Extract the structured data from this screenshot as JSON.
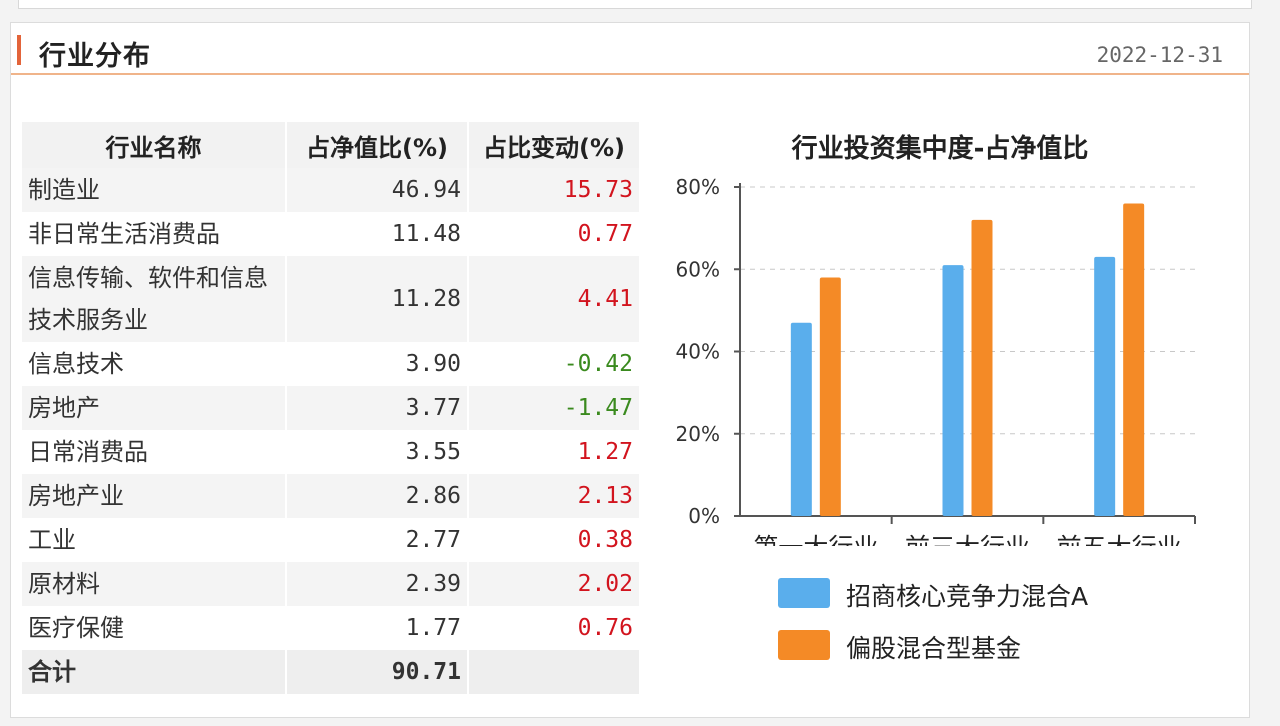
{
  "header": {
    "title": "行业分布",
    "date": "2022-12-31"
  },
  "table": {
    "columns": [
      "行业名称",
      "占净值比(%)",
      "占比变动(%)"
    ],
    "rows": [
      {
        "name": "制造业",
        "ratio": "46.94",
        "change": "15.73"
      },
      {
        "name": "非日常生活消费品",
        "ratio": "11.48",
        "change": "0.77"
      },
      {
        "name": "信息传输、软件和信息技术服务业",
        "ratio": "11.28",
        "change": "4.41"
      },
      {
        "name": "信息技术",
        "ratio": "3.90",
        "change": "-0.42"
      },
      {
        "name": "房地产",
        "ratio": "3.77",
        "change": "-1.47"
      },
      {
        "name": "日常消费品",
        "ratio": "3.55",
        "change": "1.27"
      },
      {
        "name": "房地产业",
        "ratio": "2.86",
        "change": "2.13"
      },
      {
        "name": "工业",
        "ratio": "2.77",
        "change": "0.38"
      },
      {
        "name": "原材料",
        "ratio": "2.39",
        "change": "2.02"
      },
      {
        "name": "医疗保健",
        "ratio": "1.77",
        "change": "0.76"
      }
    ],
    "total": {
      "name": "合计",
      "ratio": "90.71",
      "change": ""
    }
  },
  "chart_data": {
    "type": "bar",
    "title": "行业投资集中度-占净值比",
    "categories": [
      "第一大行业",
      "前三大行业",
      "前五大行业"
    ],
    "series": [
      {
        "name": "招商核心竞争力混合A",
        "values": [
          47,
          61,
          63
        ],
        "color": "#5aaeec"
      },
      {
        "name": "偏股混合型基金",
        "values": [
          58,
          72,
          76
        ],
        "color": "#f48a26"
      }
    ],
    "ylim": [
      0,
      80
    ],
    "yticks": [
      "0%",
      "20%",
      "40%",
      "60%",
      "80%"
    ],
    "grid": true,
    "legend_position": "bottom"
  }
}
